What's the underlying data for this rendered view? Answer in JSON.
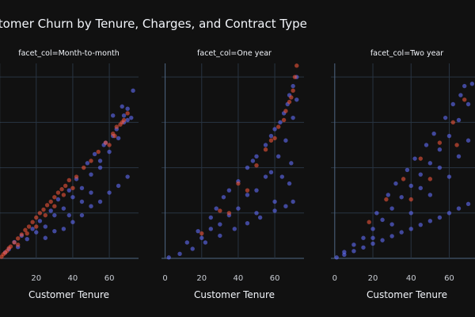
{
  "chart_data": {
    "type": "scatter",
    "title": "Customer Churn by Tenure, Charges, and Contract Type",
    "xlabel": "Customer Tenure",
    "ylabel": "",
    "xlim": [
      -2,
      76
    ],
    "ylim": [
      0,
      8600
    ],
    "x_ticks": [
      0,
      20,
      40,
      60
    ],
    "y_gridlines": [
      0,
      2000,
      4000,
      6000,
      8000
    ],
    "grid": true,
    "legend": "none",
    "colors": {
      "no_churn": "#636efa",
      "churn": "#ef553b",
      "background": "#111111",
      "grid": "#283442"
    },
    "facets": [
      {
        "title": "facet_col=Month-to-month",
        "series": [
          {
            "color": "#636efa",
            "points": [
              [
                3,
                260
              ],
              [
                5,
                400
              ],
              [
                8,
                720
              ],
              [
                10,
                500
              ],
              [
                12,
                1000
              ],
              [
                15,
                850
              ],
              [
                18,
                1300
              ],
              [
                20,
                1150
              ],
              [
                22,
                1650
              ],
              [
                25,
                1400
              ],
              [
                28,
                2100
              ],
              [
                30,
                1900
              ],
              [
                32,
                2600
              ],
              [
                35,
                2200
              ],
              [
                38,
                3000
              ],
              [
                40,
                2700
              ],
              [
                42,
                3500
              ],
              [
                45,
                3100
              ],
              [
                48,
                4200
              ],
              [
                50,
                3700
              ],
              [
                52,
                4600
              ],
              [
                55,
                4000
              ],
              [
                57,
                5000
              ],
              [
                60,
                4700
              ],
              [
                62,
                5400
              ],
              [
                65,
                5300
              ],
              [
                68,
                6000
              ],
              [
                70,
                6100
              ],
              [
                72,
                6200
              ],
              [
                35,
                1300
              ],
              [
                40,
                1600
              ],
              [
                45,
                1900
              ],
              [
                50,
                2300
              ],
              [
                55,
                2500
              ],
              [
                60,
                2900
              ],
              [
                65,
                3200
              ],
              [
                70,
                3600
              ],
              [
                62,
                6300
              ],
              [
                67,
                6700
              ],
              [
                70,
                6600
              ],
              [
                73,
                7400
              ],
              [
                55,
                4300
              ],
              [
                58,
                5100
              ],
              [
                45,
                2500
              ],
              [
                50,
                2900
              ],
              [
                38,
                1900
              ],
              [
                30,
                1200
              ],
              [
                25,
                900
              ],
              [
                64,
                5700
              ],
              [
                68,
                6300
              ]
            ]
          },
          {
            "color": "#ef553b",
            "points": [
              [
                1,
                70
              ],
              [
                2,
                180
              ],
              [
                3,
                250
              ],
              [
                4,
                330
              ],
              [
                5,
                450
              ],
              [
                6,
                520
              ],
              [
                8,
                700
              ],
              [
                10,
                880
              ],
              [
                12,
                1050
              ],
              [
                14,
                1250
              ],
              [
                16,
                1400
              ],
              [
                18,
                1600
              ],
              [
                20,
                1800
              ],
              [
                22,
                2000
              ],
              [
                24,
                2150
              ],
              [
                26,
                2350
              ],
              [
                28,
                2500
              ],
              [
                30,
                2700
              ],
              [
                32,
                2900
              ],
              [
                34,
                3050
              ],
              [
                36,
                3200
              ],
              [
                38,
                3450
              ],
              [
                42,
                3600
              ],
              [
                46,
                4000
              ],
              [
                50,
                4300
              ],
              [
                54,
                4700
              ],
              [
                58,
                5100
              ],
              [
                62,
                5500
              ],
              [
                64,
                5800
              ],
              [
                66,
                5900
              ],
              [
                68,
                6100
              ],
              [
                70,
                6400
              ],
              [
                10,
                600
              ],
              [
                15,
                1100
              ],
              [
                20,
                1400
              ],
              [
                25,
                1900
              ],
              [
                30,
                2300
              ],
              [
                35,
                2800
              ],
              [
                40,
                3100
              ],
              [
                60,
                5000
              ],
              [
                63,
                5400
              ],
              [
                67,
                6000
              ]
            ]
          }
        ]
      },
      {
        "title": "facet_col=One year",
        "series": [
          {
            "color": "#636efa",
            "points": [
              [
                2,
                40
              ],
              [
                8,
                200
              ],
              [
                15,
                420
              ],
              [
                22,
                700
              ],
              [
                30,
                1000
              ],
              [
                38,
                1300
              ],
              [
                45,
                1550
              ],
              [
                52,
                1800
              ],
              [
                60,
                2100
              ],
              [
                66,
                2300
              ],
              [
                70,
                2500
              ],
              [
                12,
                700
              ],
              [
                18,
                1200
              ],
              [
                25,
                1800
              ],
              [
                28,
                2200
              ],
              [
                32,
                2700
              ],
              [
                35,
                3000
              ],
              [
                40,
                3400
              ],
              [
                45,
                4000
              ],
              [
                48,
                4300
              ],
              [
                50,
                4500
              ],
              [
                55,
                5000
              ],
              [
                58,
                5400
              ],
              [
                60,
                5700
              ],
              [
                63,
                6000
              ],
              [
                65,
                6400
              ],
              [
                67,
                6800
              ],
              [
                68,
                7200
              ],
              [
                70,
                7600
              ],
              [
                72,
                8000
              ],
              [
                30,
                1500
              ],
              [
                40,
                2200
              ],
              [
                50,
                3000
              ],
              [
                55,
                3600
              ],
              [
                62,
                4500
              ],
              [
                66,
                5200
              ],
              [
                70,
                6200
              ],
              [
                72,
                7000
              ],
              [
                45,
                2800
              ],
              [
                58,
                3800
              ],
              [
                64,
                3600
              ],
              [
                69,
                4200
              ],
              [
                35,
                1900
              ],
              [
                25,
                1300
              ],
              [
                20,
                900
              ],
              [
                50,
                2000
              ],
              [
                60,
                2500
              ],
              [
                68,
                3300
              ]
            ]
          },
          {
            "color": "#ef553b",
            "points": [
              [
                20,
                1100
              ],
              [
                30,
                2100
              ],
              [
                40,
                3300
              ],
              [
                50,
                4100
              ],
              [
                55,
                4800
              ],
              [
                60,
                5300
              ],
              [
                65,
                6100
              ],
              [
                68,
                6900
              ],
              [
                70,
                7400
              ],
              [
                71,
                8000
              ],
              [
                72,
                8500
              ],
              [
                62,
                5800
              ],
              [
                58,
                5200
              ],
              [
                45,
                3000
              ],
              [
                35,
                2000
              ],
              [
                66,
                6500
              ],
              [
                69,
                7100
              ]
            ]
          }
        ]
      },
      {
        "title": "facet_col=Two year",
        "series": [
          {
            "color": "#636efa",
            "points": [
              [
                1,
                40
              ],
              [
                5,
                160
              ],
              [
                10,
                320
              ],
              [
                15,
                480
              ],
              [
                20,
                650
              ],
              [
                25,
                800
              ],
              [
                30,
                980
              ],
              [
                35,
                1150
              ],
              [
                40,
                1300
              ],
              [
                45,
                1480
              ],
              [
                50,
                1650
              ],
              [
                55,
                1800
              ],
              [
                60,
                2000
              ],
              [
                65,
                2200
              ],
              [
                70,
                2400
              ],
              [
                5,
                280
              ],
              [
                10,
                600
              ],
              [
                15,
                900
              ],
              [
                20,
                1300
              ],
              [
                25,
                1700
              ],
              [
                30,
                2200
              ],
              [
                35,
                2700
              ],
              [
                40,
                3200
              ],
              [
                45,
                3700
              ],
              [
                50,
                4200
              ],
              [
                55,
                4800
              ],
              [
                60,
                5400
              ],
              [
                65,
                6100
              ],
              [
                70,
                6800
              ],
              [
                72,
                7700
              ],
              [
                22,
                2000
              ],
              [
                28,
                2800
              ],
              [
                32,
                3300
              ],
              [
                38,
                3900
              ],
              [
                42,
                4400
              ],
              [
                48,
                5000
              ],
              [
                52,
                5500
              ],
              [
                58,
                6200
              ],
              [
                62,
                6800
              ],
              [
                66,
                7200
              ],
              [
                68,
                7600
              ],
              [
                40,
                2000
              ],
              [
                50,
                2800
              ],
              [
                60,
                3600
              ],
              [
                65,
                4500
              ],
              [
                70,
                5200
              ],
              [
                45,
                3100
              ],
              [
                55,
                4000
              ],
              [
                30,
                1500
              ],
              [
                20,
                900
              ]
            ]
          },
          {
            "color": "#ef553b",
            "points": [
              [
                18,
                1600
              ],
              [
                27,
                2600
              ],
              [
                36,
                3500
              ],
              [
                45,
                4400
              ],
              [
                55,
                5100
              ],
              [
                62,
                6000
              ],
              [
                68,
                7000
              ],
              [
                50,
                3500
              ],
              [
                40,
                2600
              ],
              [
                64,
                5000
              ]
            ]
          }
        ]
      }
    ]
  }
}
